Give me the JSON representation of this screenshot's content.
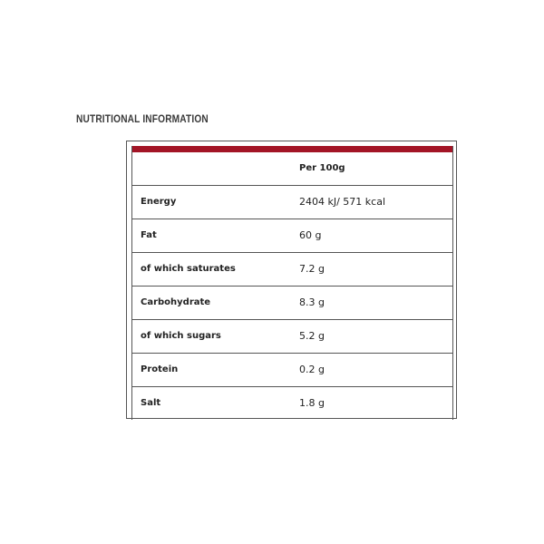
{
  "title": "NUTRITIONAL INFORMATION",
  "accent_color": "#a31526",
  "table": {
    "header": "Per 100g",
    "rows": [
      {
        "label": "Energy",
        "value": "2404 kJ/ 571 kcal"
      },
      {
        "label": "Fat",
        "value": "60 g"
      },
      {
        "label": "of which saturates",
        "value": "7.2 g"
      },
      {
        "label": "Carbohydrate",
        "value": "8.3 g"
      },
      {
        "label": "of which sugars",
        "value": "5.2 g"
      },
      {
        "label": "Protein",
        "value": "0.2 g"
      },
      {
        "label": "Salt",
        "value": "1.8 g"
      }
    ]
  }
}
